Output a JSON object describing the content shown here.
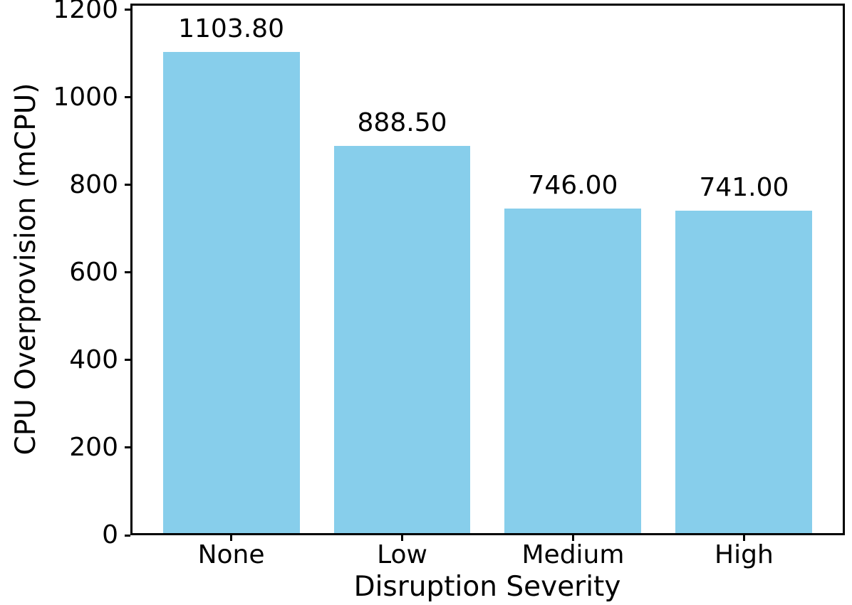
{
  "chart_data": {
    "type": "bar",
    "title": "",
    "xlabel": "Disruption Severity",
    "ylabel": "CPU Overprovision (mCPU)",
    "categories": [
      "None",
      "Low",
      "Medium",
      "High"
    ],
    "values": [
      1103.8,
      888.5,
      746.0,
      741.0
    ],
    "value_labels": [
      "1103.80",
      "888.50",
      "746.00",
      "741.00"
    ],
    "yticks": [
      0,
      200,
      400,
      600,
      800,
      1000,
      1200
    ],
    "ylim": [
      0,
      1214
    ],
    "bar_width_fraction": 0.8,
    "grid": false,
    "bar_color": "#87CEEB",
    "text_color": "#000000",
    "spine_color": "#000000",
    "background_color": "#ffffff"
  }
}
